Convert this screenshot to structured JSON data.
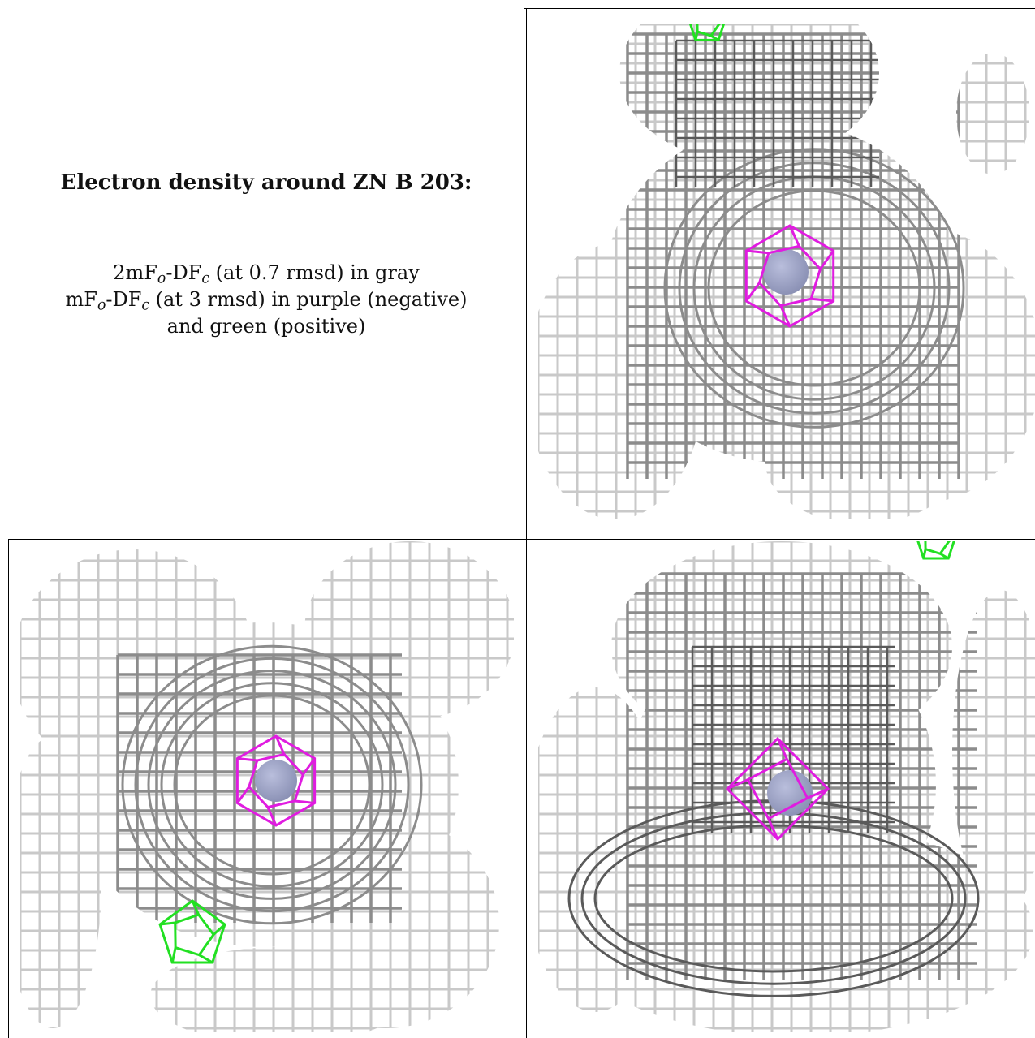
{
  "caption": {
    "title": "Electron density around ZN B 203:",
    "line1": {
      "prefix": "2mF",
      "sub1": "o",
      "mid": "-DF",
      "sub2": "c",
      "suffix": " (at 0.7 rmsd) in gray"
    },
    "line2": {
      "prefix": "mF",
      "sub1": "o",
      "mid": "-DF",
      "sub2": "c",
      "suffix": " (at 3 rmsd) in purple (negative)"
    },
    "line3": "and green (positive)"
  },
  "colors": {
    "mesh_dark": "#5a5a5a",
    "mesh_mid": "#8c8c8c",
    "mesh_light": "#c9c9c9",
    "negative_density": "#e01ce0",
    "positive_density": "#22e022",
    "zinc_atom": "#8a90b4",
    "border": "#000000"
  },
  "views": [
    {
      "name": "view-top-right",
      "icon": "density-mesh"
    },
    {
      "name": "view-bottom-left",
      "icon": "density-mesh"
    },
    {
      "name": "view-bottom-right",
      "icon": "density-mesh"
    }
  ]
}
